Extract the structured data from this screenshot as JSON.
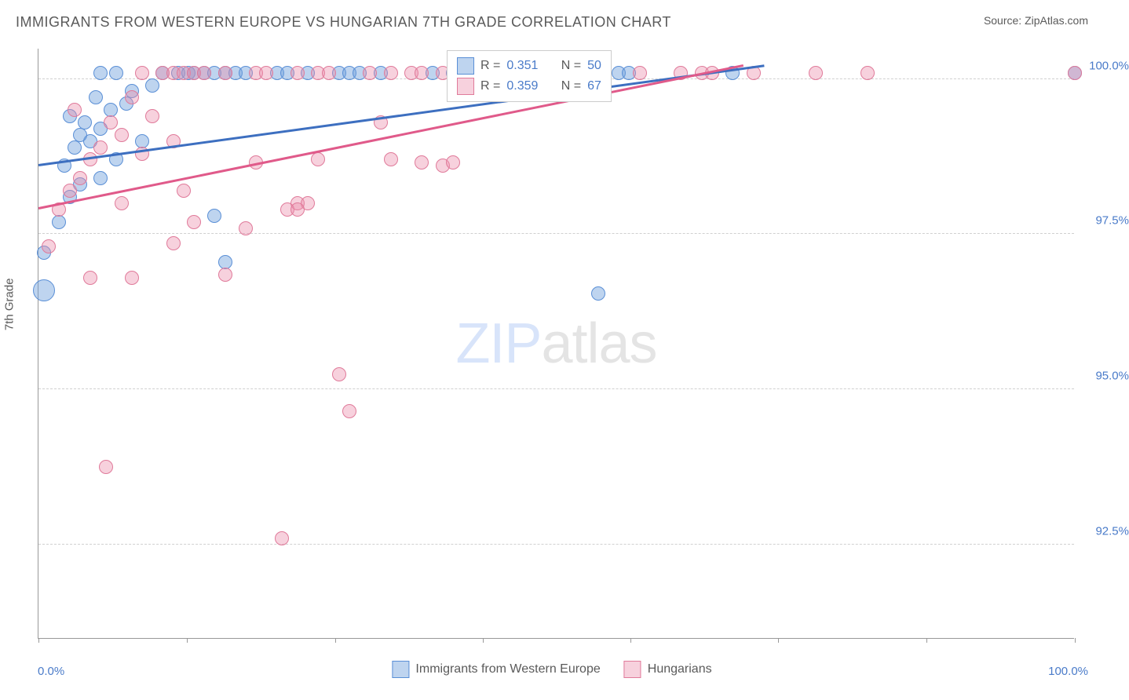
{
  "title": "IMMIGRANTS FROM WESTERN EUROPE VS HUNGARIAN 7TH GRADE CORRELATION CHART",
  "source_label": "Source: ",
  "source_name": "ZipAtlas.com",
  "ylabel": "7th Grade",
  "watermark": {
    "part1": "ZIP",
    "part2": "atlas"
  },
  "chart": {
    "type": "scatter",
    "background_color": "#ffffff",
    "grid_color": "#d0d0d0",
    "axis_color": "#999999",
    "xlim": [
      0,
      100
    ],
    "ylim": [
      91.0,
      100.5
    ],
    "y_ticks": [
      92.5,
      95.0,
      97.5,
      100.0
    ],
    "y_tick_labels": [
      "92.5%",
      "95.0%",
      "97.5%",
      "100.0%"
    ],
    "x_tick_positions": [
      0,
      14.3,
      28.6,
      42.9,
      57.1,
      71.4,
      85.7,
      100
    ],
    "x_min_label": "0.0%",
    "x_max_label": "100.0%",
    "label_color": "#4a7bc9",
    "axis_text_color": "#5a5a5a",
    "series": [
      {
        "name": "Immigrants from Western Europe",
        "fill": "rgba(111, 160, 220, 0.45)",
        "stroke": "#5a8fd6",
        "line_color": "#3d6fc0",
        "r_value": "0.351",
        "n_value": "50",
        "trend": {
          "x1": 0,
          "y1": 98.6,
          "x2": 70,
          "y2": 100.2
        },
        "point_radius": 9,
        "points": [
          [
            0.5,
            96.6,
            14
          ],
          [
            0.5,
            97.2
          ],
          [
            2,
            97.7
          ],
          [
            3,
            98.1
          ],
          [
            4,
            98.3
          ],
          [
            2.5,
            98.6
          ],
          [
            3.5,
            98.9
          ],
          [
            5,
            99.0
          ],
          [
            6,
            99.2
          ],
          [
            4.5,
            99.3
          ],
          [
            7,
            99.5
          ],
          [
            8.5,
            99.6
          ],
          [
            5.5,
            99.7
          ],
          [
            9,
            99.8
          ],
          [
            10,
            99.0
          ],
          [
            6,
            98.4
          ],
          [
            7.5,
            98.7
          ],
          [
            3,
            99.4
          ],
          [
            4,
            99.1
          ],
          [
            11,
            99.9
          ],
          [
            17,
            97.8
          ],
          [
            18,
            97.05
          ],
          [
            54,
            96.55
          ],
          [
            6,
            100.1
          ],
          [
            7.5,
            100.1
          ],
          [
            12,
            100.1
          ],
          [
            13.5,
            100.1
          ],
          [
            14.5,
            100.1
          ],
          [
            15,
            100.1
          ],
          [
            16,
            100.1
          ],
          [
            17,
            100.1
          ],
          [
            18,
            100.1
          ],
          [
            19,
            100.1
          ],
          [
            20,
            100.1
          ],
          [
            23,
            100.1
          ],
          [
            24,
            100.1
          ],
          [
            26,
            100.1
          ],
          [
            29,
            100.1
          ],
          [
            30,
            100.1
          ],
          [
            31,
            100.1
          ],
          [
            33,
            100.1
          ],
          [
            38,
            100.1
          ],
          [
            40,
            100.1
          ],
          [
            44,
            100.1
          ],
          [
            46,
            100.1
          ],
          [
            48,
            100.1
          ],
          [
            52,
            100.1
          ],
          [
            56,
            100.1
          ],
          [
            57,
            100.1
          ],
          [
            67,
            100.1
          ],
          [
            100,
            100.1
          ]
        ]
      },
      {
        "name": "Hungarians",
        "fill": "rgba(235, 140, 170, 0.4)",
        "stroke": "#e07a9a",
        "line_color": "#e05a8a",
        "r_value": "0.359",
        "n_value": "67",
        "trend": {
          "x1": 0,
          "y1": 97.9,
          "x2": 68,
          "y2": 100.2
        },
        "point_radius": 9,
        "points": [
          [
            1,
            97.3
          ],
          [
            2,
            97.9
          ],
          [
            3,
            98.2
          ],
          [
            4,
            98.4
          ],
          [
            5,
            98.7
          ],
          [
            6,
            98.9
          ],
          [
            3.5,
            99.5
          ],
          [
            7,
            99.3
          ],
          [
            8,
            99.1
          ],
          [
            9,
            99.7
          ],
          [
            10,
            98.8
          ],
          [
            11,
            99.4
          ],
          [
            8,
            98.0
          ],
          [
            13,
            99.0
          ],
          [
            14,
            98.2
          ],
          [
            5,
            96.8
          ],
          [
            9,
            96.8
          ],
          [
            18,
            96.85
          ],
          [
            13,
            97.35
          ],
          [
            15,
            97.7
          ],
          [
            20,
            97.6
          ],
          [
            25,
            98.0
          ],
          [
            24,
            97.9
          ],
          [
            26,
            98.0
          ],
          [
            25,
            97.9
          ],
          [
            21,
            98.65
          ],
          [
            27,
            98.7
          ],
          [
            33,
            99.3
          ],
          [
            34,
            98.7
          ],
          [
            37,
            98.65
          ],
          [
            39,
            98.6
          ],
          [
            40,
            98.65
          ],
          [
            6.5,
            93.75
          ],
          [
            23.5,
            92.6
          ],
          [
            29,
            95.25
          ],
          [
            30,
            94.65
          ],
          [
            10,
            100.1
          ],
          [
            12,
            100.1
          ],
          [
            13,
            100.1
          ],
          [
            14,
            100.1
          ],
          [
            15,
            100.1
          ],
          [
            16,
            100.1
          ],
          [
            18,
            100.1
          ],
          [
            21,
            100.1
          ],
          [
            22,
            100.1
          ],
          [
            25,
            100.1
          ],
          [
            27,
            100.1
          ],
          [
            28,
            100.1
          ],
          [
            32,
            100.1
          ],
          [
            34,
            100.1
          ],
          [
            36,
            100.1
          ],
          [
            37,
            100.1
          ],
          [
            39,
            100.1
          ],
          [
            41,
            100.1
          ],
          [
            42,
            100.1
          ],
          [
            43,
            100.1
          ],
          [
            45,
            100.1
          ],
          [
            47,
            100.1
          ],
          [
            49,
            100.1
          ],
          [
            50,
            100.1
          ],
          [
            58,
            100.1
          ],
          [
            62,
            100.1
          ],
          [
            64,
            100.1
          ],
          [
            65,
            100.1
          ],
          [
            69,
            100.1
          ],
          [
            75,
            100.1
          ],
          [
            80,
            100.1
          ],
          [
            100,
            100.1
          ]
        ]
      }
    ],
    "stats_legend": {
      "r_prefix": "R = ",
      "n_prefix": "N = "
    },
    "bottom_legend_labels": [
      "Immigrants from Western Europe",
      "Hungarians"
    ]
  }
}
